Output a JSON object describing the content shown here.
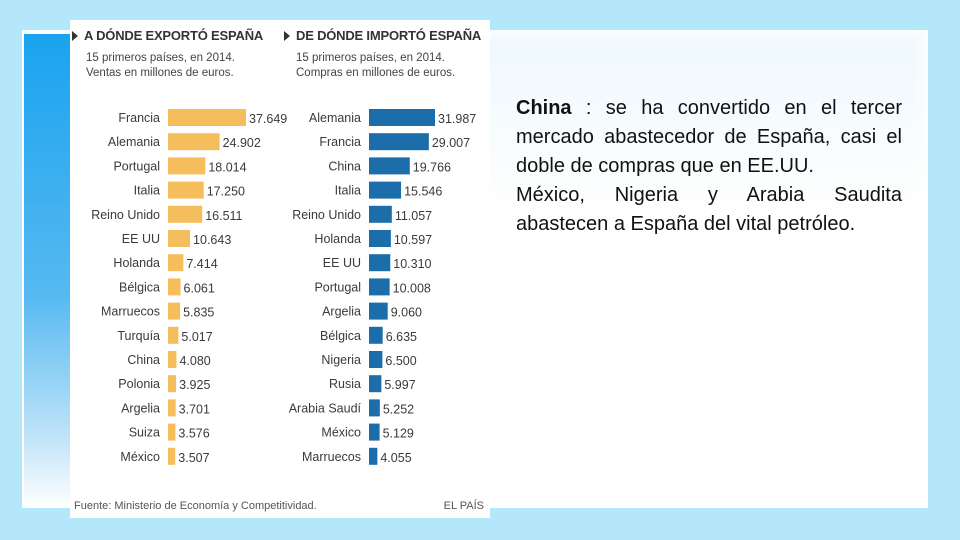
{
  "infographic": {
    "left_panel": {
      "title": "A DÓNDE EXPORTÓ ESPAÑA",
      "subtitle_line1": "15 primeros países, en 2014.",
      "subtitle_line2": "Ventas en millones de euros."
    },
    "right_panel": {
      "title": "DE DÓNDE IMPORTÓ ESPAÑA",
      "subtitle_line1": "15 primeros países, en 2014.",
      "subtitle_line2": "Compras en millones de euros."
    },
    "source": "Fuente: Ministerio de Economía y Competitividad.",
    "brand": "EL PAÍS"
  },
  "chart_data": [
    {
      "type": "bar",
      "orientation": "horizontal",
      "title": "A DÓNDE EXPORTÓ ESPAÑA",
      "color": "#f5bd5c",
      "categories": [
        "Francia",
        "Alemania",
        "Portugal",
        "Italia",
        "Reino Unido",
        "EE UU",
        "Holanda",
        "Bélgica",
        "Marruecos",
        "Turquía",
        "China",
        "Polonia",
        "Argelia",
        "Suiza",
        "México"
      ],
      "values": [
        37649,
        24902,
        18014,
        17250,
        16511,
        10643,
        7414,
        6061,
        5835,
        5017,
        4080,
        3925,
        3701,
        3576,
        3507
      ],
      "value_labels": [
        "37.649",
        "24.902",
        "18.014",
        "17.250",
        "16.511",
        "10.643",
        "7.414",
        "6.061",
        "5.835",
        "5.017",
        "4.080",
        "3.925",
        "3.701",
        "3.576",
        "3.507"
      ]
    },
    {
      "type": "bar",
      "orientation": "horizontal",
      "title": "DE DÓNDE IMPORTÓ ESPAÑA",
      "color": "#1b6ea9",
      "categories": [
        "Alemania",
        "Francia",
        "China",
        "Italia",
        "Reino Unido",
        "Holanda",
        "EE UU",
        "Portugal",
        "Argelia",
        "Bélgica",
        "Nigeria",
        "Rusia",
        "Arabia Saudí",
        "México",
        "Marruecos"
      ],
      "values": [
        31987,
        29007,
        19766,
        15546,
        11057,
        10597,
        10310,
        10008,
        9060,
        6635,
        6500,
        5997,
        5252,
        5129,
        4055
      ],
      "value_labels": [
        "31.987",
        "29.007",
        "19.766",
        "15.546",
        "11.057",
        "10.597",
        "10.310",
        "10.008",
        "9.060",
        "6.635",
        "6.500",
        "5.997",
        "5.252",
        "5.129",
        "4.055"
      ]
    }
  ],
  "text": {
    "china_bold": "China",
    "paragraph1_rest": " : se ha convertido en el tercer mercado abastecedor de España, casi el doble de compras que en EE.UU.",
    "paragraph2": "México, Nigeria  y Arabia Saudita abastecen a España del vital petróleo."
  }
}
